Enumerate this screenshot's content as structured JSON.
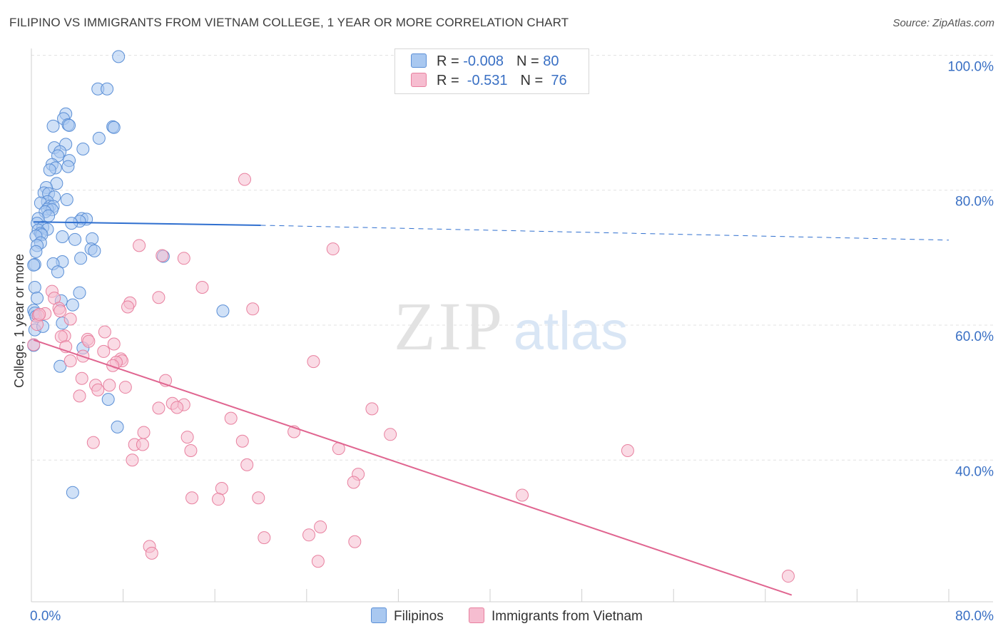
{
  "title": "FILIPINO VS IMMIGRANTS FROM VIETNAM COLLEGE, 1 YEAR OR MORE CORRELATION CHART",
  "source": "Source: ZipAtlas.com",
  "watermark": {
    "zip": "ZIP",
    "atlas": "atlas"
  },
  "legend_top": {
    "rows": [
      {
        "r_label": "R = ",
        "r_value": "-0.008",
        "n_label": "N = ",
        "n_value": "80"
      },
      {
        "r_label": "R = ",
        "r_value": " -0.531",
        "n_label": "N = ",
        "n_value": " 76"
      }
    ]
  },
  "colors": {
    "blue_fill": "#a9c8f0",
    "blue_stroke": "#5b8fd6",
    "blue_line": "#2f6fcf",
    "pink_fill": "#f6bdd0",
    "pink_stroke": "#e8809f",
    "pink_line": "#e06590",
    "axis_label": "#3a70c4",
    "grid": "#e2e2e2"
  },
  "chart_data": {
    "type": "scatter",
    "title": "FILIPINO VS IMMIGRANTS FROM VIETNAM COLLEGE, 1 YEAR OR MORE CORRELATION CHART",
    "xlabel": "",
    "ylabel": "College, 1 year or more",
    "xlim": [
      0,
      80
    ],
    "ylim": [
      19,
      101
    ],
    "x_tick_labels": [
      {
        "value": 0,
        "label": "0.0%"
      },
      {
        "value": 80,
        "label": "80.0%"
      }
    ],
    "y_tick_labels": [
      {
        "value": 100,
        "label": "100.0%"
      },
      {
        "value": 80,
        "label": "80.0%"
      },
      {
        "value": 60,
        "label": "60.0%"
      },
      {
        "value": 40,
        "label": "40.0%"
      }
    ],
    "grid": true,
    "legend_position": "bottom",
    "series": [
      {
        "name": "Filipinos",
        "color": "#a9c8f0",
        "r": -0.008,
        "n": 80,
        "trend": {
          "x_start": 0.2,
          "y_start": 75.3,
          "x_solid_end": 20,
          "y_solid_end": 74.8,
          "x_end": 80,
          "y_end": 72.6
        },
        "points": [
          [
            7.6,
            99.8
          ],
          [
            5.8,
            95.0
          ],
          [
            6.6,
            95.0
          ],
          [
            3.0,
            91.3
          ],
          [
            2.8,
            90.6
          ],
          [
            3.2,
            89.7
          ],
          [
            3.3,
            89.6
          ],
          [
            1.9,
            89.5
          ],
          [
            7.1,
            89.4
          ],
          [
            7.2,
            89.3
          ],
          [
            5.9,
            87.7
          ],
          [
            3.0,
            86.8
          ],
          [
            2.0,
            86.3
          ],
          [
            4.5,
            86.1
          ],
          [
            2.5,
            85.7
          ],
          [
            2.3,
            85.1
          ],
          [
            3.3,
            84.4
          ],
          [
            1.8,
            83.8
          ],
          [
            3.2,
            83.5
          ],
          [
            2.1,
            83.3
          ],
          [
            1.6,
            83.0
          ],
          [
            2.2,
            81.0
          ],
          [
            1.3,
            80.4
          ],
          [
            1.1,
            79.6
          ],
          [
            1.5,
            79.5
          ],
          [
            2.0,
            79.0
          ],
          [
            3.1,
            78.6
          ],
          [
            1.4,
            78.3
          ],
          [
            0.8,
            78.1
          ],
          [
            1.6,
            77.6
          ],
          [
            1.9,
            77.6
          ],
          [
            1.4,
            77.2
          ],
          [
            1.8,
            77.1
          ],
          [
            1.2,
            76.8
          ],
          [
            1.5,
            76.2
          ],
          [
            0.6,
            75.8
          ],
          [
            4.4,
            75.8
          ],
          [
            4.8,
            75.7
          ],
          [
            0.5,
            75.1
          ],
          [
            4.2,
            75.4
          ],
          [
            3.5,
            75.1
          ],
          [
            1.0,
            74.5
          ],
          [
            0.6,
            74.1
          ],
          [
            1.4,
            74.2
          ],
          [
            0.8,
            73.6
          ],
          [
            0.9,
            73.4
          ],
          [
            0.4,
            73.2
          ],
          [
            2.7,
            73.1
          ],
          [
            5.3,
            72.8
          ],
          [
            3.8,
            72.7
          ],
          [
            0.8,
            72.2
          ],
          [
            0.5,
            71.8
          ],
          [
            5.2,
            71.3
          ],
          [
            5.5,
            71.0
          ],
          [
            0.4,
            70.9
          ],
          [
            11.5,
            70.2
          ],
          [
            4.3,
            69.9
          ],
          [
            2.7,
            69.4
          ],
          [
            1.9,
            69.1
          ],
          [
            0.3,
            69.0
          ],
          [
            0.2,
            68.9
          ],
          [
            2.3,
            67.9
          ],
          [
            0.3,
            65.6
          ],
          [
            4.2,
            64.8
          ],
          [
            2.6,
            63.6
          ],
          [
            3.6,
            63.0
          ],
          [
            0.2,
            62.2
          ],
          [
            16.7,
            62.1
          ],
          [
            0.3,
            61.8
          ],
          [
            0.4,
            61.3
          ],
          [
            2.7,
            60.3
          ],
          [
            0.2,
            57.0
          ],
          [
            4.5,
            56.6
          ],
          [
            2.5,
            53.9
          ],
          [
            6.7,
            49.0
          ],
          [
            7.5,
            44.9
          ],
          [
            3.6,
            35.2
          ],
          [
            0.3,
            59.3
          ],
          [
            1.0,
            59.8
          ],
          [
            0.5,
            64.0
          ]
        ]
      },
      {
        "name": "Immigrants from Vietnam",
        "color": "#f6bdd0",
        "r": -0.531,
        "n": 76,
        "trend": {
          "x_start": 0.2,
          "y_start": 57.8,
          "x_end": 66.3,
          "y_end": 20.0
        },
        "points": [
          [
            18.6,
            81.6
          ],
          [
            9.4,
            71.8
          ],
          [
            26.3,
            71.3
          ],
          [
            11.4,
            70.3
          ],
          [
            13.3,
            69.9
          ],
          [
            14.9,
            65.6
          ],
          [
            1.8,
            65.0
          ],
          [
            11.1,
            64.1
          ],
          [
            2.0,
            64.0
          ],
          [
            8.6,
            63.3
          ],
          [
            2.4,
            62.5
          ],
          [
            19.3,
            62.4
          ],
          [
            8.4,
            62.7
          ],
          [
            2.5,
            62.1
          ],
          [
            1.2,
            61.7
          ],
          [
            0.6,
            61.4
          ],
          [
            3.4,
            60.9
          ],
          [
            0.5,
            60.1
          ],
          [
            6.4,
            59.0
          ],
          [
            2.9,
            58.4
          ],
          [
            2.6,
            58.3
          ],
          [
            4.9,
            57.9
          ],
          [
            5.0,
            57.6
          ],
          [
            7.2,
            57.2
          ],
          [
            0.2,
            57.1
          ],
          [
            3.0,
            56.8
          ],
          [
            6.3,
            56.1
          ],
          [
            4.5,
            55.4
          ],
          [
            7.8,
            55.0
          ],
          [
            7.9,
            54.7
          ],
          [
            3.4,
            54.7
          ],
          [
            7.4,
            54.5
          ],
          [
            24.6,
            54.6
          ],
          [
            7.1,
            54.0
          ],
          [
            4.4,
            52.1
          ],
          [
            11.7,
            51.8
          ],
          [
            6.8,
            51.1
          ],
          [
            5.6,
            51.1
          ],
          [
            8.2,
            50.8
          ],
          [
            5.8,
            50.4
          ],
          [
            4.2,
            49.5
          ],
          [
            12.3,
            48.4
          ],
          [
            13.3,
            48.2
          ],
          [
            12.7,
            47.8
          ],
          [
            11.1,
            47.7
          ],
          [
            29.7,
            47.6
          ],
          [
            17.4,
            46.2
          ],
          [
            9.8,
            44.1
          ],
          [
            22.9,
            44.2
          ],
          [
            31.3,
            43.8
          ],
          [
            13.6,
            43.4
          ],
          [
            18.4,
            42.8
          ],
          [
            5.4,
            42.6
          ],
          [
            9.0,
            42.3
          ],
          [
            9.7,
            42.3
          ],
          [
            26.8,
            41.7
          ],
          [
            13.9,
            41.4
          ],
          [
            52.0,
            41.4
          ],
          [
            8.8,
            40.0
          ],
          [
            18.8,
            39.3
          ],
          [
            28.5,
            37.9
          ],
          [
            28.1,
            36.7
          ],
          [
            16.6,
            35.8
          ],
          [
            42.8,
            34.8
          ],
          [
            14.0,
            34.4
          ],
          [
            16.3,
            34.2
          ],
          [
            19.8,
            34.4
          ],
          [
            25.2,
            30.1
          ],
          [
            24.2,
            28.9
          ],
          [
            20.3,
            28.5
          ],
          [
            28.2,
            27.9
          ],
          [
            10.3,
            27.2
          ],
          [
            10.5,
            26.2
          ],
          [
            25.0,
            25.0
          ],
          [
            66.0,
            22.8
          ],
          [
            0.7,
            61.6
          ]
        ]
      }
    ]
  },
  "bottom_legend": [
    {
      "label": "Filipinos"
    },
    {
      "label": "Immigrants from Vietnam"
    }
  ]
}
